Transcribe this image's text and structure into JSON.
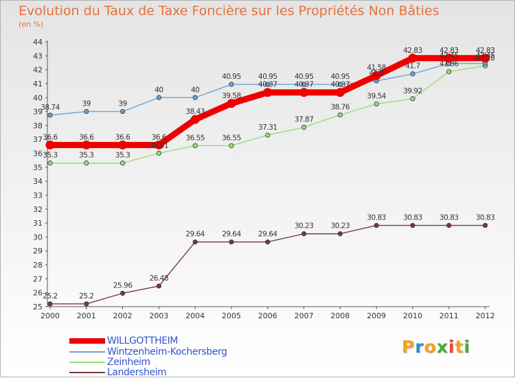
{
  "title": "Evolution du Taux de Taxe Foncière sur les Propriétés Non Bâties",
  "subtitle": "(en %)",
  "logo": {
    "letters": [
      "P",
      "r",
      "o",
      "x",
      "i",
      "t",
      "i"
    ],
    "colors": [
      "#f5a21b",
      "#2b8ad6",
      "#f5a21b",
      "#3fae3a",
      "#e8473a",
      "#f5a21b",
      "#3fae3a"
    ]
  },
  "chart_data": {
    "type": "line",
    "title": "Evolution du Taux de Taxe Foncière sur les Propriétés Non Bâties",
    "ylabel": "(en %)",
    "xlabel": "",
    "ylim": [
      25,
      44
    ],
    "yticks": [
      25,
      26,
      27,
      28,
      29,
      30,
      31,
      32,
      33,
      34,
      35,
      36,
      37,
      38,
      39,
      40,
      41,
      42,
      43,
      44
    ],
    "x": [
      "2000",
      "2001",
      "2002",
      "2003",
      "2004",
      "2005",
      "2006",
      "2007",
      "2008",
      "2009",
      "2010",
      "2011",
      "2012"
    ],
    "grid": false,
    "legend": "bottom-left",
    "series": [
      {
        "name": "WILLGOTTHEIM",
        "color": "#ee0000",
        "values": [
          36.6,
          36.6,
          36.6,
          36.6,
          38.43,
          39.58,
          40.37,
          40.37,
          40.37,
          41.58,
          42.83,
          42.83,
          42.83
        ],
        "labels": [
          "36.6",
          "36.6",
          "36.6",
          "36.6",
          "38.43",
          "39.58",
          "40.37",
          "40.37",
          "40.37",
          "41.58",
          "42.83",
          "42.83",
          "42.83"
        ]
      },
      {
        "name": "Wintzenheim-Kochersberg",
        "color": "#6aa3d5",
        "values": [
          38.74,
          39,
          39,
          40,
          40,
          40.95,
          40.95,
          40.95,
          40.95,
          41.2,
          41.7,
          42.45,
          42.45
        ],
        "labels": [
          "38.74",
          "39",
          "39",
          "40",
          "40",
          "40.95",
          "40.95",
          "40.95",
          "40.95",
          "41.2",
          "41.7",
          "42.45",
          "42.45"
        ]
      },
      {
        "name": "Zeinheim",
        "color": "#99dd77",
        "values": [
          35.3,
          35.3,
          35.3,
          36.01,
          36.55,
          36.55,
          37.31,
          37.87,
          38.76,
          39.54,
          39.92,
          41.86,
          42.28
        ],
        "labels": [
          "35.3",
          "35.3",
          "35.3",
          "36.01",
          "36.55",
          "36.55",
          "37.31",
          "37.87",
          "38.76",
          "39.54",
          "39.92",
          "41.86",
          "42.28"
        ]
      },
      {
        "name": "Landersheim",
        "color": "#7a3a3a",
        "values": [
          25.2,
          25.2,
          25.96,
          26.48,
          29.64,
          29.64,
          29.64,
          30.23,
          30.23,
          30.83,
          30.83,
          30.83,
          30.83
        ],
        "labels": [
          "25.2",
          "25.2",
          "25.96",
          "26.48",
          "29.64",
          "29.64",
          "29.64",
          "30.23",
          "30.23",
          "30.83",
          "30.83",
          "30.83",
          "30.83"
        ]
      }
    ]
  }
}
